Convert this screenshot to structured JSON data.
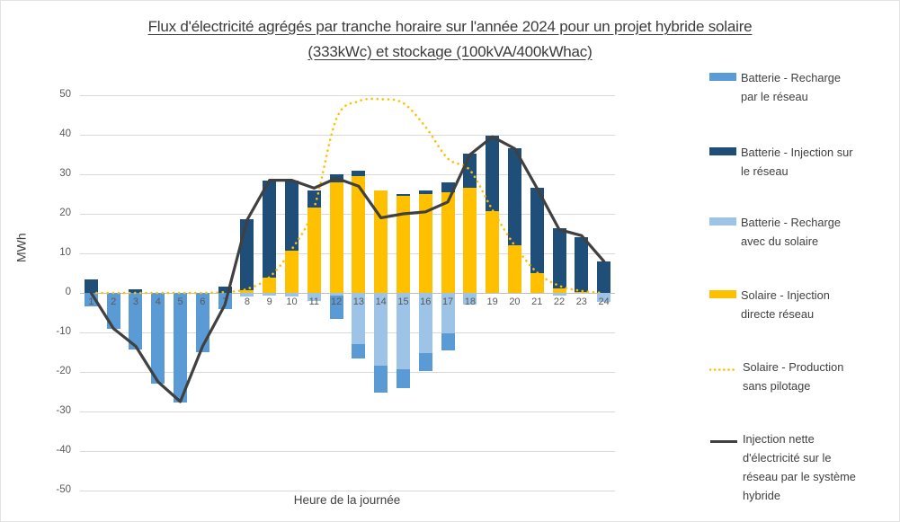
{
  "title": {
    "line1": "Flux d'électricité agrégés par tranche horaire sur l'année 2024 pour un projet hybride solaire",
    "line2": "(333kWc) et stockage (100kVA/400kWhac)"
  },
  "y_axis": {
    "title": "MWh",
    "ticks": [
      50,
      40,
      30,
      20,
      10,
      0,
      -10,
      -20,
      -30,
      -40,
      -50
    ]
  },
  "x_axis": {
    "title": "Heure de la journée"
  },
  "colors": {
    "grid_recharge": "#5B9BD5",
    "battery_injection": "#1F4E79",
    "solar_recharge": "#9DC3E6",
    "solar_direct": "#FFC000",
    "solar_production_line": "#FFC000",
    "net_line": "#404040",
    "gridline": "#D9D9D9"
  },
  "legend": [
    {
      "key": "grid-recharge",
      "type": "box",
      "color": "#5B9BD5",
      "label": "Batterie - Recharge par le réseau"
    },
    {
      "key": "battery-injection",
      "type": "box",
      "color": "#1F4E79",
      "label": "Batterie - Injection sur le réseau"
    },
    {
      "key": "solar-recharge",
      "type": "box",
      "color": "#9DC3E6",
      "label": "Batterie - Recharge avec du solaire"
    },
    {
      "key": "solar-direct",
      "type": "box",
      "color": "#FFC000",
      "label": "Solaire - Injection directe réseau"
    },
    {
      "key": "solar-production",
      "type": "dotted-line",
      "color": "#FFC000",
      "label": "Solaire - Production sans pilotage"
    },
    {
      "key": "net-injection",
      "type": "line",
      "color": "#404040",
      "label": "Injection nette d'électricité sur le réseau par le système hybride"
    }
  ],
  "chart_data": {
    "type": "combo",
    "unit": "MWh",
    "title": "Flux d'électricité agrégés par tranche horaire sur l'année 2024 pour un projet hybride solaire (333kWc) et stockage (100kVA/400kWhac)",
    "categories": [
      "1",
      "2",
      "3",
      "4",
      "5",
      "6",
      "7",
      "8",
      "9",
      "10",
      "11",
      "12",
      "13",
      "14",
      "15",
      "16",
      "17",
      "18",
      "19",
      "20",
      "21",
      "22",
      "23",
      "24"
    ],
    "xlabel": "Heure de la journée",
    "ylabel": "MWh",
    "ylim": [
      -50,
      50
    ],
    "y_tick_step": 10,
    "grid": true,
    "legend_position": "right",
    "bar_series": [
      {
        "key": "solar_direct",
        "name": "Solaire - Injection directe réseau",
        "stack": "positive",
        "color": "#FFC000",
        "values": [
          0,
          0,
          0,
          0,
          0,
          0,
          0,
          0.7,
          3.9,
          10.7,
          21.5,
          28,
          29.5,
          25.8,
          24.6,
          25,
          25.4,
          26.5,
          20.6,
          12.1,
          5.1,
          1.1,
          0.2,
          0
        ]
      },
      {
        "key": "battery_injection",
        "name": "Batterie - Injection sur le réseau",
        "stack": "positive",
        "color": "#1F4E79",
        "values": [
          3.4,
          0,
          0.8,
          0,
          0,
          0,
          1.6,
          17.9,
          24.4,
          17.7,
          4.3,
          2.1,
          1.3,
          0,
          0.4,
          0.8,
          2.6,
          8.7,
          19.2,
          24.5,
          21.4,
          15.3,
          14,
          8
        ]
      },
      {
        "key": "solar_recharge",
        "name": "Batterie - Recharge avec du solaire",
        "stack": "negative",
        "color": "#9DC3E6",
        "values": [
          0,
          0,
          0,
          0,
          0,
          0,
          0,
          -1,
          -0.7,
          -0.8,
          -2,
          -0.7,
          -13,
          -18.5,
          -19.4,
          -15.2,
          -10.2,
          -3,
          0,
          0,
          0,
          -0.6,
          0,
          -2.3
        ]
      },
      {
        "key": "grid_recharge",
        "name": "Batterie - Recharge par le réseau",
        "stack": "negative",
        "color": "#5B9BD5",
        "values": [
          -3.3,
          -9,
          -14.3,
          -23,
          -27.7,
          -14.9,
          -4,
          0,
          0,
          0,
          0,
          -5.9,
          -3.6,
          -6.8,
          -4.7,
          -4.5,
          -4.4,
          0,
          0,
          0,
          0,
          0,
          0,
          0
        ]
      }
    ],
    "line_series": [
      {
        "key": "solar_production",
        "name": "Solaire - Production sans pilotage",
        "style": "dotted",
        "smooth": true,
        "color": "#FFC000",
        "values": [
          0,
          0,
          0,
          0,
          0,
          0,
          0.2,
          1,
          4,
          11,
          21.5,
          44,
          48.5,
          49,
          48,
          42,
          34,
          31,
          21,
          12,
          5.2,
          1.8,
          0.5,
          0
        ]
      },
      {
        "key": "net_injection",
        "name": "Injection nette d'électricité sur le réseau par le système hybride",
        "style": "solid",
        "smooth": false,
        "color": "#404040",
        "values": [
          0,
          -9,
          -13.5,
          -22.5,
          -27.5,
          -13.5,
          -3,
          18.5,
          28.5,
          28.5,
          26.5,
          29,
          27,
          19,
          20,
          20.5,
          23,
          35,
          39.5,
          36.5,
          26.5,
          16,
          14.5,
          8
        ]
      }
    ]
  }
}
